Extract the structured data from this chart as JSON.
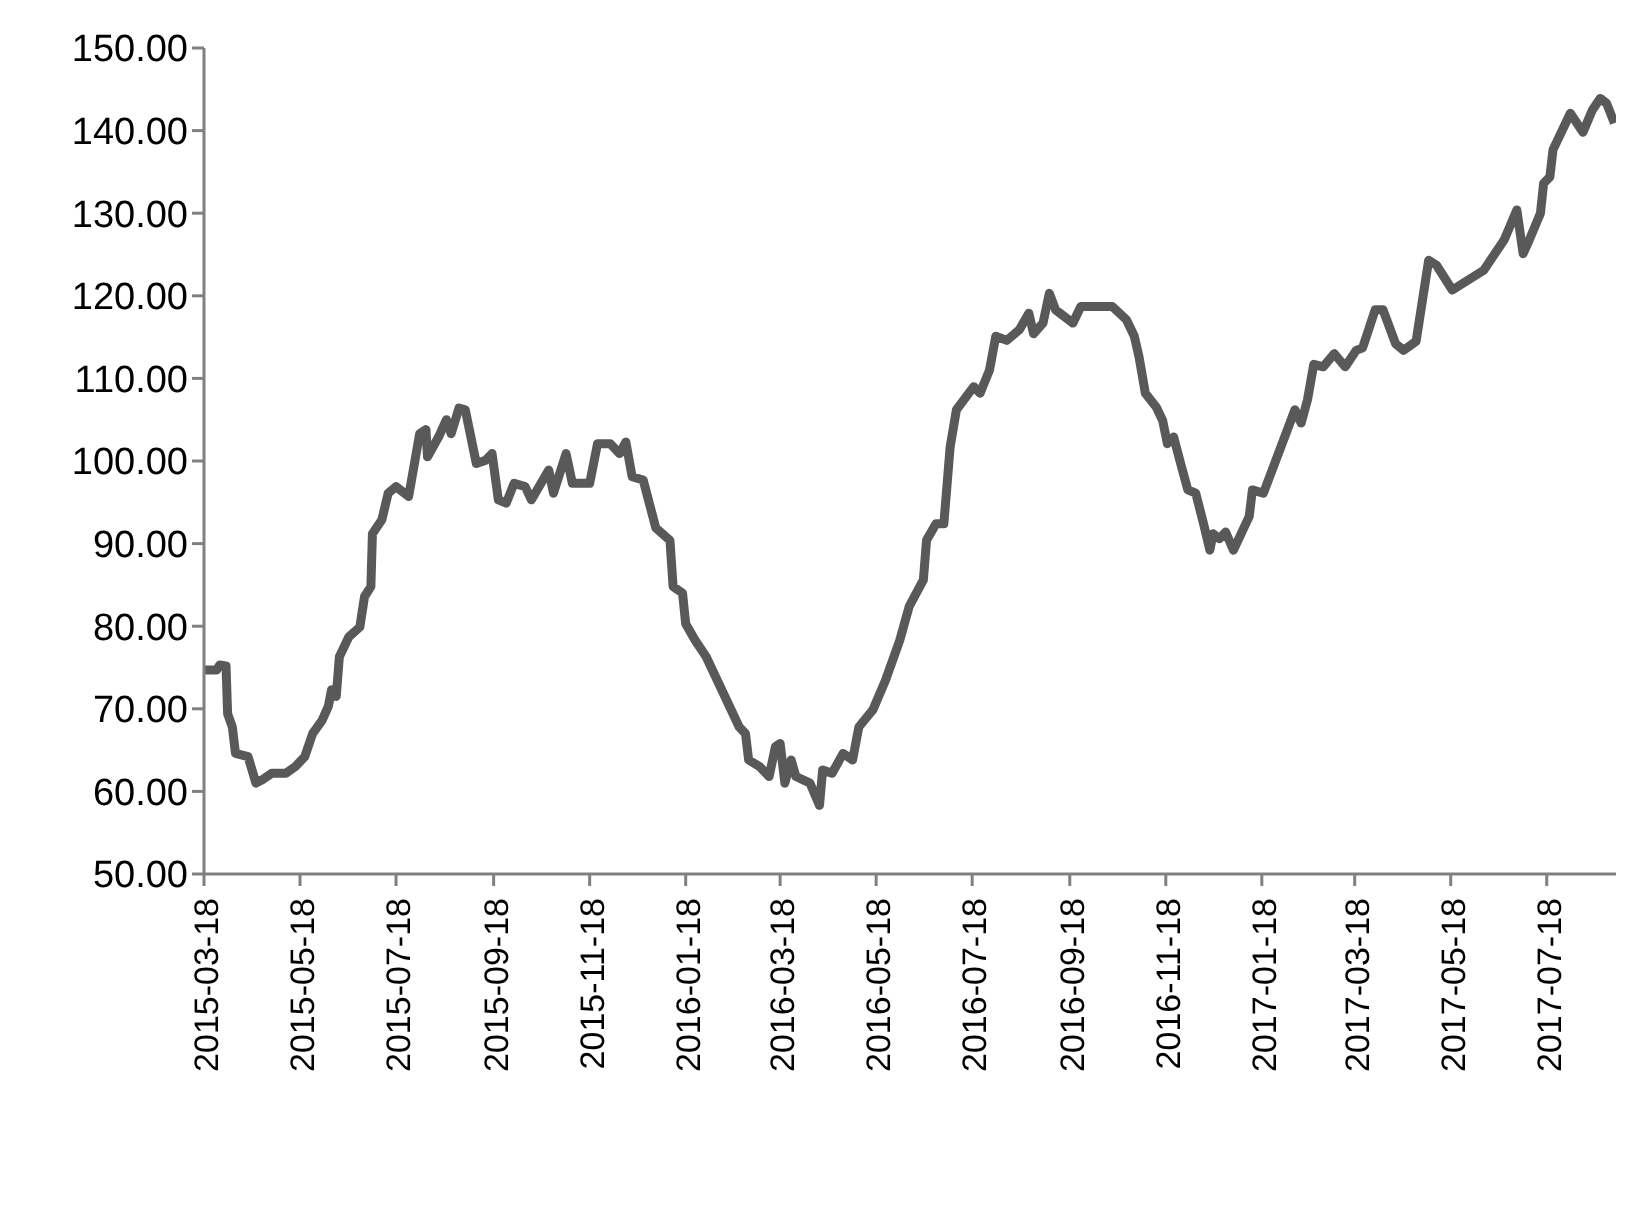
{
  "chart_data": {
    "type": "line",
    "xlim": [
      "2015-03-18",
      "2017-08-31"
    ],
    "xticks": [
      "2015-03-18",
      "2015-05-18",
      "2015-07-18",
      "2015-09-18",
      "2015-11-18",
      "2016-01-18",
      "2016-03-18",
      "2016-05-18",
      "2016-07-18",
      "2016-09-18",
      "2016-11-18",
      "2017-01-18",
      "2017-03-18",
      "2017-05-18",
      "2017-07-18"
    ],
    "ylim": [
      50,
      150
    ],
    "yticks": [
      {
        "value": 50,
        "label": "50.00"
      },
      {
        "value": 60,
        "label": "60.00"
      },
      {
        "value": 70,
        "label": "70.00"
      },
      {
        "value": 80,
        "label": "80.00"
      },
      {
        "value": 90,
        "label": "90.00"
      },
      {
        "value": 100,
        "label": "100.00"
      },
      {
        "value": 110,
        "label": "110.00"
      },
      {
        "value": 120,
        "label": "120.00"
      },
      {
        "value": 130,
        "label": "130.00"
      },
      {
        "value": 140,
        "label": "140.00"
      },
      {
        "value": 150,
        "label": "150.00"
      }
    ],
    "grid": false,
    "legend": false,
    "marker": "none",
    "line_style": "solid",
    "series": [
      {
        "color": "#595959",
        "x": [
          "2015-03-18",
          "2015-03-26",
          "2015-03-28",
          "2015-04-01",
          "2015-04-02",
          "2015-04-05",
          "2015-04-07",
          "2015-04-15",
          "2015-04-20",
          "2015-04-24",
          "2015-04-30",
          "2015-05-09",
          "2015-05-15",
          "2015-05-21",
          "2015-05-26",
          "2015-06-01",
          "2015-06-05",
          "2015-06-07",
          "2015-06-10",
          "2015-06-12",
          "2015-06-18",
          "2015-06-25",
          "2015-06-28",
          "2015-07-02",
          "2015-07-03",
          "2015-07-09",
          "2015-07-13",
          "2015-07-18",
          "2015-07-26",
          "2015-08-02",
          "2015-08-06",
          "2015-08-07",
          "2015-08-14",
          "2015-08-19",
          "2015-08-22",
          "2015-08-27",
          "2015-08-31",
          "2015-09-07",
          "2015-09-13",
          "2015-09-17",
          "2015-09-21",
          "2015-09-26",
          "2015-10-01",
          "2015-10-08",
          "2015-10-12",
          "2015-10-23",
          "2015-10-26",
          "2015-11-03",
          "2015-11-07",
          "2015-11-18",
          "2015-11-23",
          "2015-12-01",
          "2015-12-07",
          "2015-12-11",
          "2015-12-15",
          "2015-12-22",
          "2015-12-30",
          "2016-01-08",
          "2016-01-10",
          "2016-01-16",
          "2016-01-18",
          "2016-01-24",
          "2016-01-31",
          "2016-02-21",
          "2016-02-25",
          "2016-02-27",
          "2016-03-05",
          "2016-03-11",
          "2016-03-15",
          "2016-03-18",
          "2016-03-21",
          "2016-03-25",
          "2016-03-28",
          "2016-04-06",
          "2016-04-12",
          "2016-04-14",
          "2016-04-20",
          "2016-04-27",
          "2016-05-03",
          "2016-05-07",
          "2016-05-16",
          "2016-05-24",
          "2016-06-02",
          "2016-06-08",
          "2016-06-17",
          "2016-06-19",
          "2016-06-25",
          "2016-06-30",
          "2016-07-04",
          "2016-07-08",
          "2016-07-19",
          "2016-07-23",
          "2016-07-29",
          "2016-08-02",
          "2016-08-09",
          "2016-08-17",
          "2016-08-23",
          "2016-08-26",
          "2016-09-01",
          "2016-09-05",
          "2016-09-09",
          "2016-09-20",
          "2016-09-25",
          "2016-10-15",
          "2016-10-24",
          "2016-10-29",
          "2016-11-01",
          "2016-11-05",
          "2016-11-12",
          "2016-11-16",
          "2016-11-19",
          "2016-11-23",
          "2016-11-28",
          "2016-12-02",
          "2016-12-07",
          "2016-12-12",
          "2016-12-16",
          "2016-12-18",
          "2016-12-22",
          "2016-12-26",
          "2016-12-31",
          "2017-01-10",
          "2017-01-12",
          "2017-01-19",
          "2017-02-08",
          "2017-02-12",
          "2017-02-16",
          "2017-02-20",
          "2017-02-26",
          "2017-03-05",
          "2017-03-12",
          "2017-03-19",
          "2017-03-23",
          "2017-03-31",
          "2017-04-05",
          "2017-04-13",
          "2017-04-18",
          "2017-04-26",
          "2017-05-04",
          "2017-05-09",
          "2017-05-19",
          "2017-06-08",
          "2017-06-21",
          "2017-06-29",
          "2017-07-03",
          "2017-07-07",
          "2017-07-14",
          "2017-07-16",
          "2017-07-20",
          "2017-07-22",
          "2017-07-29",
          "2017-08-02",
          "2017-08-10",
          "2017-08-16",
          "2017-08-21",
          "2017-08-25",
          "2017-08-30"
        ],
        "values": [
          74.7,
          74.7,
          75.3,
          75.2,
          69.4,
          67.8,
          64.6,
          64.2,
          61.0,
          61.4,
          62.2,
          62.2,
          63.0,
          64.2,
          67.0,
          68.6,
          70.3,
          72.3,
          71.5,
          76.3,
          78.7,
          79.9,
          83.6,
          84.8,
          91.2,
          92.9,
          96.1,
          96.9,
          95.7,
          103.3,
          103.8,
          100.5,
          102.9,
          105.0,
          103.3,
          106.4,
          106.2,
          99.7,
          100.1,
          100.9,
          95.3,
          94.9,
          97.3,
          96.9,
          95.3,
          98.9,
          96.1,
          100.9,
          97.3,
          97.3,
          102.1,
          102.1,
          100.9,
          102.3,
          98.1,
          97.7,
          91.9,
          90.4,
          84.8,
          84.0,
          80.3,
          78.3,
          76.3,
          67.8,
          67.0,
          63.8,
          63.0,
          61.8,
          65.4,
          65.8,
          61.0,
          63.8,
          61.8,
          61.0,
          58.3,
          62.6,
          62.2,
          64.6,
          63.8,
          67.8,
          69.9,
          73.5,
          78.3,
          82.4,
          85.6,
          90.4,
          92.4,
          92.4,
          101.7,
          106.2,
          109.0,
          108.2,
          111.0,
          115.1,
          114.6,
          115.9,
          117.9,
          115.4,
          116.7,
          120.3,
          118.3,
          116.7,
          118.7,
          118.7,
          117.1,
          115.1,
          112.6,
          108.2,
          106.5,
          104.9,
          102.1,
          102.9,
          99.3,
          96.5,
          96.1,
          92.4,
          89.2,
          91.2,
          90.6,
          91.4,
          89.2,
          93.3,
          96.5,
          96.1,
          106.2,
          104.6,
          107.4,
          111.7,
          111.4,
          113.0,
          111.4,
          113.4,
          113.7,
          118.3,
          118.3,
          114.2,
          113.4,
          114.5,
          124.3,
          123.7,
          120.7,
          123.1,
          126.8,
          130.4,
          125.1,
          126.8,
          130.0,
          133.6,
          134.4,
          137.7,
          140.5,
          142.1,
          139.8,
          142.5,
          143.9,
          143.3,
          140.9
        ]
      }
    ]
  }
}
